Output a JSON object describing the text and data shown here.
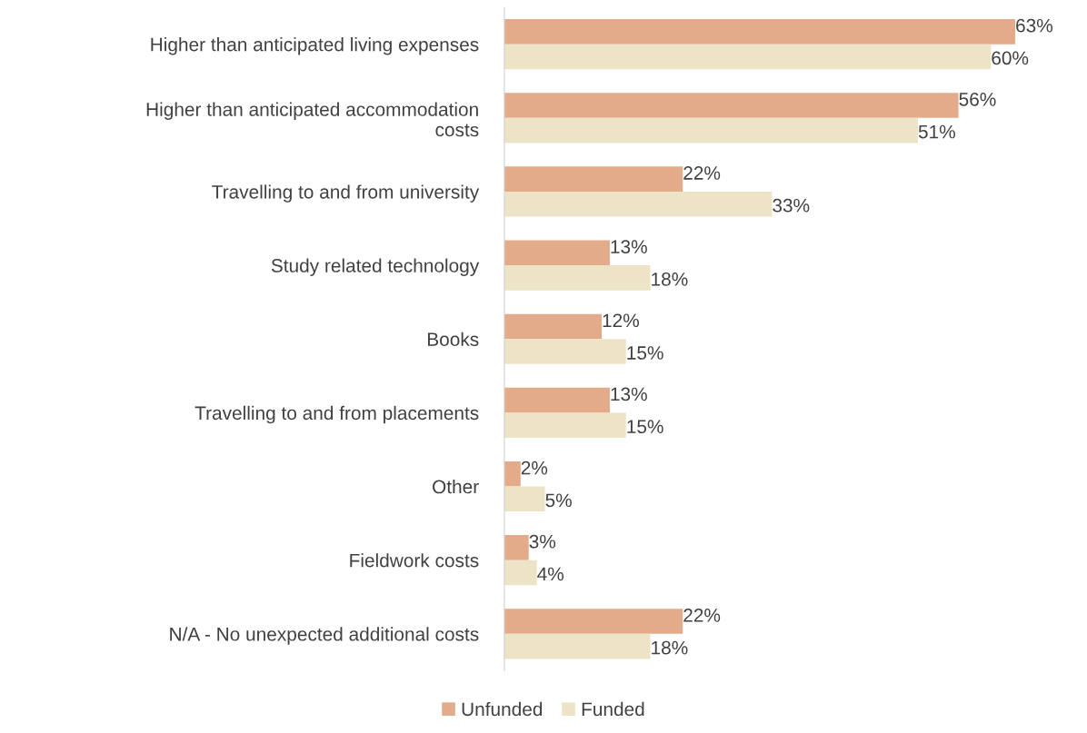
{
  "chart_data": {
    "type": "bar",
    "orientation": "horizontal",
    "categories": [
      "Higher than anticipated living expenses",
      "Higher than anticipated accommodation\ncosts",
      "Travelling to and from university",
      "Study related technology",
      "Books",
      "Travelling to and from placements",
      "Other",
      "Fieldwork costs",
      "N/A - No unexpected additional costs"
    ],
    "series": [
      {
        "name": "Unfunded",
        "color": "#e3ab8a",
        "values": [
          63,
          56,
          22,
          13,
          12,
          13,
          2,
          3,
          22
        ],
        "value_labels": [
          "63%",
          "56%",
          "22%",
          "13%",
          "12%",
          "13%",
          "2%",
          "3%",
          "22%"
        ]
      },
      {
        "name": "Funded",
        "color": "#ede3c6",
        "values": [
          60,
          51,
          33,
          18,
          15,
          15,
          5,
          4,
          18
        ],
        "value_labels": [
          "60%",
          "51%",
          "33%",
          "18%",
          "15%",
          "15%",
          "5%",
          "4%",
          "18%"
        ]
      }
    ],
    "legend": "bottom",
    "grid": false
  }
}
